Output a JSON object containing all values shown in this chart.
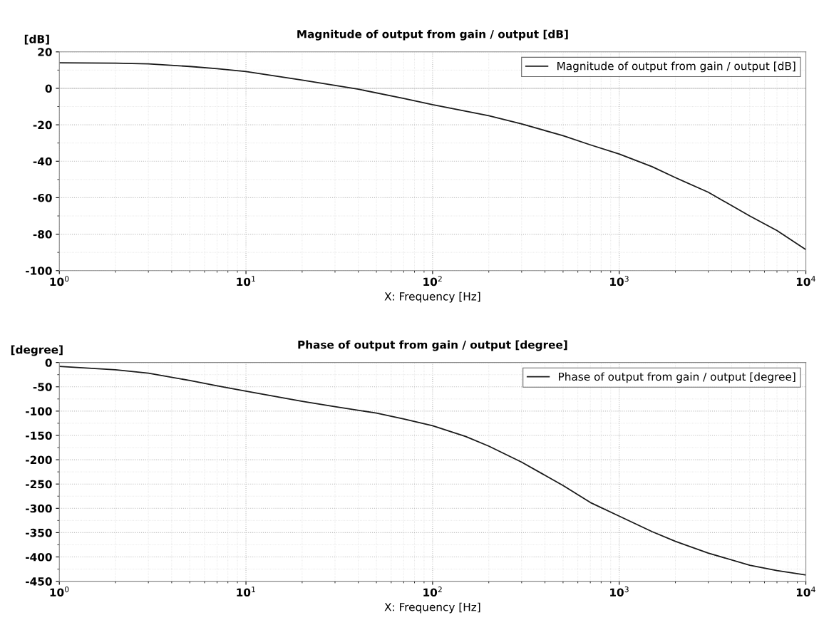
{
  "chart_data": [
    {
      "type": "line",
      "title": "Magnitude of output from gain / output [dB]",
      "xlabel": "X: Frequency [Hz]",
      "ylabel": "[dB]",
      "log": "x",
      "grid": true,
      "legend": "top right",
      "xlim": [
        1,
        10000
      ],
      "xticks": [
        {
          "value": 1,
          "label": "10$^{0}$"
        },
        {
          "value": 10,
          "label": "10$^{1}$"
        },
        {
          "value": 100,
          "label": "10$^{2}$"
        },
        {
          "value": 1000,
          "label": "10$^{3}$"
        },
        {
          "value": 10000,
          "label": "10$^{4}$"
        }
      ],
      "ylim": [
        -100,
        20
      ],
      "yticks": [
        -100,
        -80,
        -60,
        -40,
        -20,
        0,
        20
      ],
      "series": [
        {
          "name": "Magnitude of output from gain / output [dB]",
          "color": "#1a1a1a",
          "x": [
            1,
            2,
            3,
            5,
            7,
            10,
            20,
            40,
            70,
            100,
            200,
            300,
            500,
            700,
            1000,
            1500,
            2000,
            3000,
            5000,
            7000,
            10000
          ],
          "values": [
            14,
            13.8,
            13.4,
            12,
            10.8,
            9.2,
            4.5,
            -0.5,
            -5.5,
            -9,
            -15,
            -19.5,
            -26,
            -31,
            -36,
            -43,
            -49,
            -57,
            -70,
            -78,
            -88.5
          ]
        }
      ]
    },
    {
      "type": "line",
      "title": "Phase of output from gain / output [degree]",
      "xlabel": "X: Frequency [Hz]",
      "ylabel": "[degree]",
      "log": "x",
      "grid": true,
      "legend": "top right",
      "xlim": [
        1,
        10000
      ],
      "xticks": [
        {
          "value": 1,
          "label": "10$^{0}$"
        },
        {
          "value": 10,
          "label": "10$^{1}$"
        },
        {
          "value": 100,
          "label": "10$^{2}$"
        },
        {
          "value": 1000,
          "label": "10$^{3}$"
        },
        {
          "value": 10000,
          "label": "10$^{4}$"
        }
      ],
      "ylim": [
        -450,
        0
      ],
      "yticks": [
        -450,
        -400,
        -350,
        -300,
        -250,
        -200,
        -150,
        -100,
        -50,
        0
      ],
      "series": [
        {
          "name": "Phase of output from gain / output [degree]",
          "color": "#1a1a1a",
          "x": [
            1,
            2,
            3,
            5,
            7,
            10,
            20,
            30,
            50,
            70,
            100,
            150,
            200,
            300,
            500,
            700,
            1000,
            1500,
            2000,
            3000,
            5000,
            7000,
            10000
          ],
          "values": [
            -8,
            -15,
            -22,
            -37,
            -48,
            -59,
            -80,
            -91,
            -104,
            -116,
            -130,
            -152,
            -172,
            -205,
            -253,
            -288,
            -316,
            -348,
            -368,
            -392,
            -417,
            -428,
            -437
          ]
        }
      ]
    }
  ]
}
